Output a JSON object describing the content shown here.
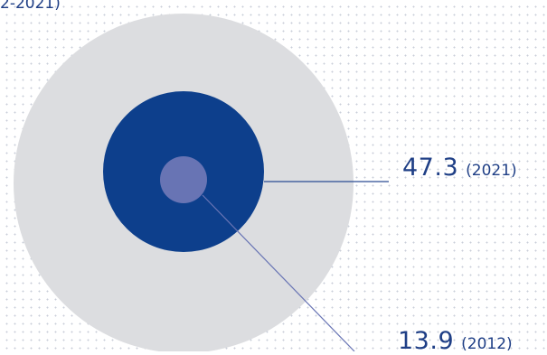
{
  "title_fragment": "2-2021)",
  "chart_data": {
    "type": "proportional-circles",
    "circles": [
      {
        "id": "outer",
        "value": null,
        "color": "#dcdde0",
        "label": ""
      },
      {
        "id": "middle",
        "value": 47.3,
        "year": "(2021)",
        "color": "#0d3f8c",
        "label": "47.3"
      },
      {
        "id": "inner",
        "value": 13.9,
        "year": "(2012)",
        "color": "#6874b4",
        "label": "13.9"
      }
    ],
    "background": "dot-grid",
    "accent_color": "#1f3f86"
  }
}
